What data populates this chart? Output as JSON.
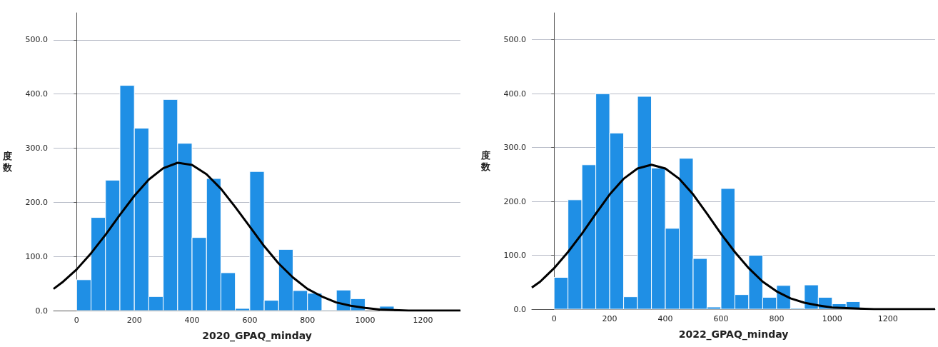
{
  "chart_data": [
    {
      "type": "histogram",
      "xlabel": "2020_GPAQ_minday",
      "ylabel": "度数",
      "bins": [
        0,
        50,
        100,
        150,
        200,
        250,
        300,
        350,
        400,
        450,
        500,
        550,
        600,
        650,
        700,
        750,
        800,
        850,
        900,
        950,
        1000,
        1050,
        1100
      ],
      "series": [
        {
          "color": "#1f8fe5",
          "values": [
            57,
            172,
            241,
            416,
            337,
            26,
            390,
            309,
            135,
            244,
            70,
            4,
            257,
            19,
            113,
            37,
            32,
            1,
            38,
            22,
            0,
            8
          ]
        },
        {
          "type": "line",
          "color": "#000000",
          "marker": "none",
          "line_style": "solid",
          "x": [
            -80,
            -50,
            0,
            50,
            100,
            150,
            200,
            250,
            300,
            350,
            400,
            450,
            500,
            550,
            600,
            650,
            700,
            750,
            800,
            850,
            900,
            950,
            1000,
            1050,
            1100,
            1150,
            1200,
            1250,
            1300,
            1330
          ],
          "values": [
            40,
            52,
            76,
            106,
            140,
            177,
            212,
            242,
            263,
            273,
            269,
            252,
            225,
            191,
            155,
            119,
            87,
            61,
            40,
            26,
            15,
            9,
            5,
            2,
            1,
            0,
            0,
            0,
            0,
            0
          ]
        }
      ],
      "xlim": [
        -80,
        1330
      ],
      "xticks": [
        0,
        200,
        400,
        600,
        800,
        1000,
        1200
      ],
      "ylim": [
        0,
        550
      ],
      "yticks": [
        {
          "value": 0,
          "label": "0.0"
        },
        {
          "value": 100,
          "label": "100.0"
        },
        {
          "value": 200,
          "label": "200.0"
        },
        {
          "value": 300,
          "label": "300.0"
        },
        {
          "value": 400,
          "label": "400.0"
        },
        {
          "value": 500,
          "label": "500.0"
        }
      ],
      "grid": "y"
    },
    {
      "type": "histogram",
      "xlabel": "2022_GPAQ_minday",
      "ylabel": "度数",
      "bins": [
        0,
        50,
        100,
        150,
        200,
        250,
        300,
        350,
        400,
        450,
        500,
        550,
        600,
        650,
        700,
        750,
        800,
        850,
        900,
        950,
        1000,
        1050,
        1100
      ],
      "series": [
        {
          "color": "#1f8fe5",
          "values": [
            59,
            203,
            268,
            400,
            327,
            23,
            395,
            262,
            150,
            280,
            94,
            4,
            224,
            27,
            100,
            22,
            44,
            2,
            45,
            22,
            10,
            14
          ]
        },
        {
          "type": "line",
          "color": "#000000",
          "marker": "none",
          "line_style": "solid",
          "x": [
            -80,
            -50,
            0,
            50,
            100,
            150,
            200,
            250,
            300,
            350,
            400,
            450,
            500,
            550,
            600,
            650,
            700,
            750,
            800,
            850,
            900,
            950,
            1000,
            1050,
            1100,
            1150,
            1200,
            1250,
            1300,
            1370
          ],
          "values": [
            40,
            51,
            76,
            106,
            140,
            177,
            213,
            242,
            261,
            268,
            261,
            242,
            213,
            177,
            140,
            106,
            76,
            51,
            33,
            20,
            12,
            7,
            3,
            2,
            1,
            0,
            0,
            0,
            0,
            0
          ]
        }
      ],
      "xlim": [
        -80,
        1370
      ],
      "xticks": [
        0,
        200,
        400,
        600,
        800,
        1000,
        1200
      ],
      "ylim": [
        0,
        550
      ],
      "yticks": [
        {
          "value": 0,
          "label": "0.0"
        },
        {
          "value": 100,
          "label": "100.0"
        },
        {
          "value": 200,
          "label": "200.0"
        },
        {
          "value": 300,
          "label": "300.0"
        },
        {
          "value": 400,
          "label": "400.0"
        },
        {
          "value": 500,
          "label": "500.0"
        }
      ],
      "grid": "y"
    }
  ]
}
